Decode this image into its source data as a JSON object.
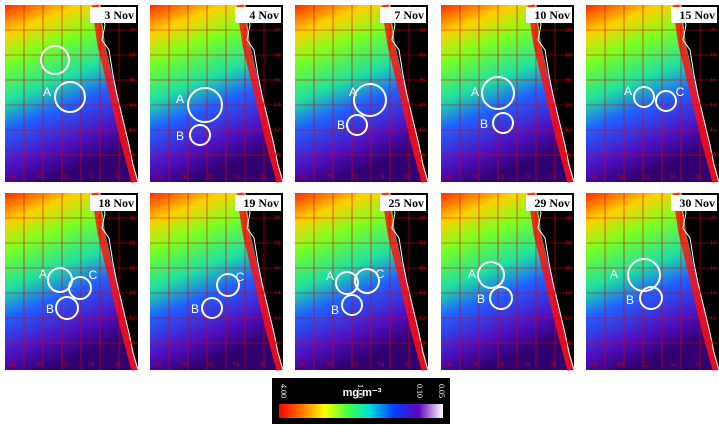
{
  "panels": [
    {
      "label": "3 Nov",
      "markers": [
        null,
        "A"
      ]
    },
    {
      "label": "4 Nov",
      "markers": [
        "A",
        "B"
      ]
    },
    {
      "label": "7 Nov",
      "markers": [
        "A",
        "B"
      ]
    },
    {
      "label": "10 Nov",
      "markers": [
        "A",
        "B"
      ]
    },
    {
      "label": "15 Nov",
      "markers": [
        "A",
        "C"
      ]
    },
    {
      "label": "18 Nov",
      "markers": [
        "A",
        "C",
        "B"
      ]
    },
    {
      "label": "19 Nov",
      "markers": [
        "C",
        "B"
      ]
    },
    {
      "label": "25 Nov",
      "markers": [
        "A",
        "C",
        "B"
      ]
    },
    {
      "label": "29 Nov",
      "markers": [
        "A",
        "B"
      ]
    },
    {
      "label": "30 Nov",
      "markers": [
        "A",
        "B"
      ]
    }
  ],
  "lat_labels": [
    "20",
    "18",
    "16",
    "14",
    "12",
    "10"
  ],
  "lon_labels": [
    "68",
    "70",
    "72",
    "74",
    "76"
  ],
  "colorbar": {
    "unit": "mg m⁻³",
    "ticks": [
      "4.00",
      "1.00",
      "0.10",
      "0.05"
    ]
  }
}
